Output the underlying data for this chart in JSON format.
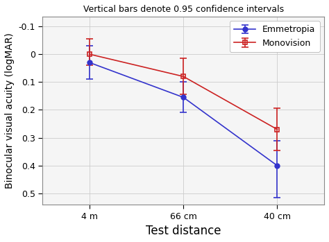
{
  "title": "Vertical bars denote 0.95 confidence intervals",
  "xlabel": "Test distance",
  "ylabel": "Binocular visual acuity (logMAR)",
  "x_labels": [
    "4 m",
    "66 cm",
    "40 cm"
  ],
  "x_positions": [
    0,
    1,
    2
  ],
  "emmetropia": {
    "label": "Emmetropia",
    "color": "#3333cc",
    "y": [
      0.03,
      0.155,
      0.4
    ],
    "yerr_low": [
      0.06,
      0.055,
      0.09
    ],
    "yerr_high": [
      0.06,
      0.055,
      0.115
    ],
    "marker": "o",
    "markersize": 5
  },
  "monovision": {
    "label": "Monovision",
    "color": "#cc2222",
    "y": [
      0.0,
      0.08,
      0.27
    ],
    "yerr_low": [
      0.055,
      0.065,
      0.075
    ],
    "yerr_high": [
      0.04,
      0.065,
      0.075
    ],
    "marker": "s",
    "markersize": 5
  },
  "ylim": [
    0.54,
    -0.135
  ],
  "yticks": [
    -0.1,
    0.0,
    0.1,
    0.2,
    0.3,
    0.4,
    0.5
  ],
  "xlim": [
    -0.5,
    2.5
  ],
  "background_color": "#f5f5f5",
  "title_fontsize": 9,
  "label_fontsize": 10,
  "tick_fontsize": 9,
  "legend_fontsize": 9
}
